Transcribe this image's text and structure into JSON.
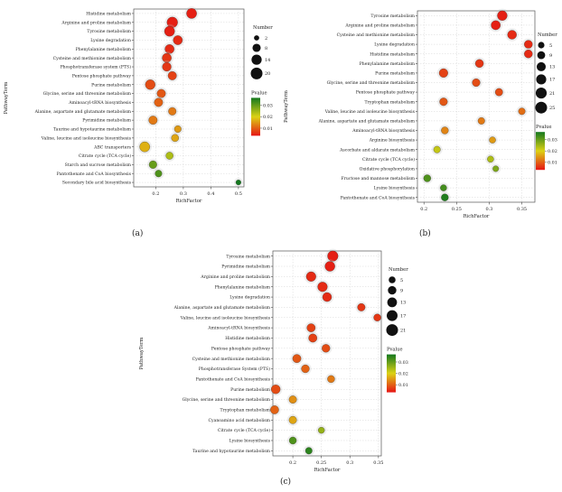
{
  "panel_labels": [
    "(a)",
    "(b)",
    "(c)"
  ],
  "chart_data": [
    {
      "type": "scatter",
      "panel": "(a)",
      "xlabel": "RichFactor",
      "ylabel": "PathwayTerm",
      "xlim": [
        0.12,
        0.52
      ],
      "xticks": [
        0.2,
        0.3,
        0.4,
        0.5
      ],
      "grid": true,
      "legend_size_title": "Number",
      "legend_size_values": [
        2,
        8,
        14,
        20
      ],
      "legend_color_title": "Pvalue",
      "legend_color_ticks": [
        "0.03",
        "0.02",
        "0.01"
      ],
      "color_range": [
        0.001,
        0.035
      ],
      "points": [
        {
          "term": "Histidine metabolism",
          "x": 0.33,
          "n": 14,
          "p": 0.002
        },
        {
          "term": "Arginine and proline metabolism",
          "x": 0.26,
          "n": 16,
          "p": 0.002
        },
        {
          "term": "Tyrosine metabolism",
          "x": 0.25,
          "n": 14,
          "p": 0.002
        },
        {
          "term": "Lysine degradation",
          "x": 0.28,
          "n": 11,
          "p": 0.003
        },
        {
          "term": "Phenylalanine metabolism",
          "x": 0.25,
          "n": 11,
          "p": 0.003
        },
        {
          "term": "Cysteine and methionine metabolism",
          "x": 0.24,
          "n": 11,
          "p": 0.004
        },
        {
          "term": "Phosphotransferase system (PTS)",
          "x": 0.24,
          "n": 10,
          "p": 0.004
        },
        {
          "term": "Pentose phosphate pathway",
          "x": 0.26,
          "n": 9,
          "p": 0.005
        },
        {
          "term": "Purine metabolism",
          "x": 0.18,
          "n": 13,
          "p": 0.006
        },
        {
          "term": "Glycine, serine and threonine metabolism",
          "x": 0.22,
          "n": 9,
          "p": 0.007
        },
        {
          "term": "Aminoacyl-tRNA biosynthesis",
          "x": 0.21,
          "n": 9,
          "p": 0.008
        },
        {
          "term": "Alanine, aspartate and glutamate metabolism",
          "x": 0.26,
          "n": 7,
          "p": 0.01
        },
        {
          "term": "Pyrimidine metabolism",
          "x": 0.19,
          "n": 9,
          "p": 0.01
        },
        {
          "term": "Taurine and hypotaurine metabolism",
          "x": 0.28,
          "n": 5,
          "p": 0.013
        },
        {
          "term": "Valine, leucine and isoleucine biosynthesis",
          "x": 0.27,
          "n": 6,
          "p": 0.014
        },
        {
          "term": "ABC transporters",
          "x": 0.16,
          "n": 14,
          "p": 0.015
        },
        {
          "term": "Citrate cycle (TCA cycle)",
          "x": 0.25,
          "n": 6,
          "p": 0.022
        },
        {
          "term": "Starch and sucrose metabolism",
          "x": 0.19,
          "n": 7,
          "p": 0.028
        },
        {
          "term": "Pantothenate and CoA biosynthesis",
          "x": 0.21,
          "n": 5,
          "p": 0.03
        },
        {
          "term": "Secondary bile acid biosynthesis",
          "x": 0.5,
          "n": 2,
          "p": 0.035
        }
      ]
    },
    {
      "type": "scatter",
      "panel": "(b)",
      "xlabel": "RichFactor",
      "ylabel": "PathwayTerm",
      "xlim": [
        0.19,
        0.37
      ],
      "xticks": [
        0.2,
        0.25,
        0.3,
        0.35
      ],
      "grid": true,
      "legend_size_title": "Number",
      "legend_size_values": [
        5,
        9,
        13,
        17,
        21,
        25
      ],
      "legend_color_title": "Pvalue",
      "legend_color_ticks": [
        "0.03",
        "0.02",
        "0.01"
      ],
      "color_range": [
        0.001,
        0.035
      ],
      "points": [
        {
          "term": "Tyrosine metabolism",
          "x": 0.32,
          "n": 16,
          "p": 0.002
        },
        {
          "term": "Arginine and proline metabolism",
          "x": 0.31,
          "n": 14,
          "p": 0.002
        },
        {
          "term": "Cysteine and methionine metabolism",
          "x": 0.335,
          "n": 13,
          "p": 0.003
        },
        {
          "term": "Lysine degradation",
          "x": 0.36,
          "n": 10,
          "p": 0.003
        },
        {
          "term": "Histidine metabolism",
          "x": 0.36,
          "n": 10,
          "p": 0.003
        },
        {
          "term": "Phenylalanine metabolism",
          "x": 0.285,
          "n": 10,
          "p": 0.004
        },
        {
          "term": "Purine metabolism",
          "x": 0.23,
          "n": 12,
          "p": 0.005
        },
        {
          "term": "Glycine, serine and threonine metabolism",
          "x": 0.28,
          "n": 9,
          "p": 0.006
        },
        {
          "term": "Pentose phosphate pathway",
          "x": 0.315,
          "n": 8,
          "p": 0.006
        },
        {
          "term": "Tryptophan metabolism",
          "x": 0.23,
          "n": 9,
          "p": 0.007
        },
        {
          "term": "Valine, leucine and isoleucine biosynthesis",
          "x": 0.35,
          "n": 6,
          "p": 0.009
        },
        {
          "term": "Alanine, aspartate and glutamate metabolism",
          "x": 0.288,
          "n": 6,
          "p": 0.01
        },
        {
          "term": "Aminoacyl-tRNA biosynthesis",
          "x": 0.232,
          "n": 7,
          "p": 0.011
        },
        {
          "term": "Arginine biosynthesis",
          "x": 0.305,
          "n": 5,
          "p": 0.013
        },
        {
          "term": "Ascorbate and aldarate metabolism",
          "x": 0.22,
          "n": 6,
          "p": 0.02
        },
        {
          "term": "Citrate cycle (TCA cycle)",
          "x": 0.302,
          "n": 5,
          "p": 0.022
        },
        {
          "term": "Oxidative phosphorylation",
          "x": 0.31,
          "n": 4,
          "p": 0.026
        },
        {
          "term": "Fructose and mannose metabolism",
          "x": 0.205,
          "n": 7,
          "p": 0.03
        },
        {
          "term": "Lysine biosynthesis",
          "x": 0.23,
          "n": 5,
          "p": 0.031
        },
        {
          "term": "Pantothenate and CoA biosynthesis",
          "x": 0.232,
          "n": 7,
          "p": 0.034
        }
      ]
    },
    {
      "type": "scatter",
      "panel": "(c)",
      "xlabel": "RichFactor",
      "ylabel": "PathwayTerm",
      "xlim": [
        0.165,
        0.355
      ],
      "xticks": [
        0.2,
        0.25,
        0.3,
        0.35
      ],
      "grid": true,
      "legend_size_title": "Number",
      "legend_size_values": [
        5,
        9,
        13,
        17,
        21
      ],
      "legend_color_title": "Pvalue",
      "legend_color_ticks": [
        "0.03",
        "0.02",
        "0.01"
      ],
      "color_range": [
        0.001,
        0.035
      ],
      "points": [
        {
          "term": "Tyrosine metabolism",
          "x": 0.27,
          "n": 16,
          "p": 0.002
        },
        {
          "term": "Pyrimidine metabolism",
          "x": 0.265,
          "n": 14,
          "p": 0.002
        },
        {
          "term": "Arginine and proline metabolism",
          "x": 0.232,
          "n": 13,
          "p": 0.003
        },
        {
          "term": "Phenylalanine metabolism",
          "x": 0.252,
          "n": 13,
          "p": 0.003
        },
        {
          "term": "Lysine degradation",
          "x": 0.26,
          "n": 11,
          "p": 0.003
        },
        {
          "term": "Alanine, aspartate and glutamate metabolism",
          "x": 0.32,
          "n": 7,
          "p": 0.004
        },
        {
          "term": "Valine, leucine and isoleucine biosynthesis",
          "x": 0.348,
          "n": 6,
          "p": 0.004
        },
        {
          "term": "Aminoacyl-tRNA biosynthesis",
          "x": 0.232,
          "n": 9,
          "p": 0.005
        },
        {
          "term": "Histidine metabolism",
          "x": 0.235,
          "n": 9,
          "p": 0.005
        },
        {
          "term": "Pentose phosphate pathway",
          "x": 0.258,
          "n": 8,
          "p": 0.006
        },
        {
          "term": "Cysteine and methionine metabolism",
          "x": 0.207,
          "n": 9,
          "p": 0.007
        },
        {
          "term": "Phosphotransferase System (PTS)",
          "x": 0.222,
          "n": 8,
          "p": 0.008
        },
        {
          "term": "Pantothenate and CoA biosynthesis",
          "x": 0.267,
          "n": 6,
          "p": 0.01
        },
        {
          "term": "Purine metabolism",
          "x": 0.17,
          "n": 11,
          "p": 0.006
        },
        {
          "term": "Glycine, serine and threonine metabolism",
          "x": 0.2,
          "n": 7,
          "p": 0.012
        },
        {
          "term": "Tryptophan metabolism",
          "x": 0.168,
          "n": 9,
          "p": 0.008
        },
        {
          "term": "Cyanoamino acid metabolism",
          "x": 0.2,
          "n": 7,
          "p": 0.014
        },
        {
          "term": "Citrate cycle (TCA cycle)",
          "x": 0.25,
          "n": 4,
          "p": 0.024
        },
        {
          "term": "Lysine biosynthesis",
          "x": 0.2,
          "n": 6,
          "p": 0.03
        },
        {
          "term": "Taurine and hypotaurine metabolism",
          "x": 0.228,
          "n": 5,
          "p": 0.033
        }
      ]
    }
  ]
}
